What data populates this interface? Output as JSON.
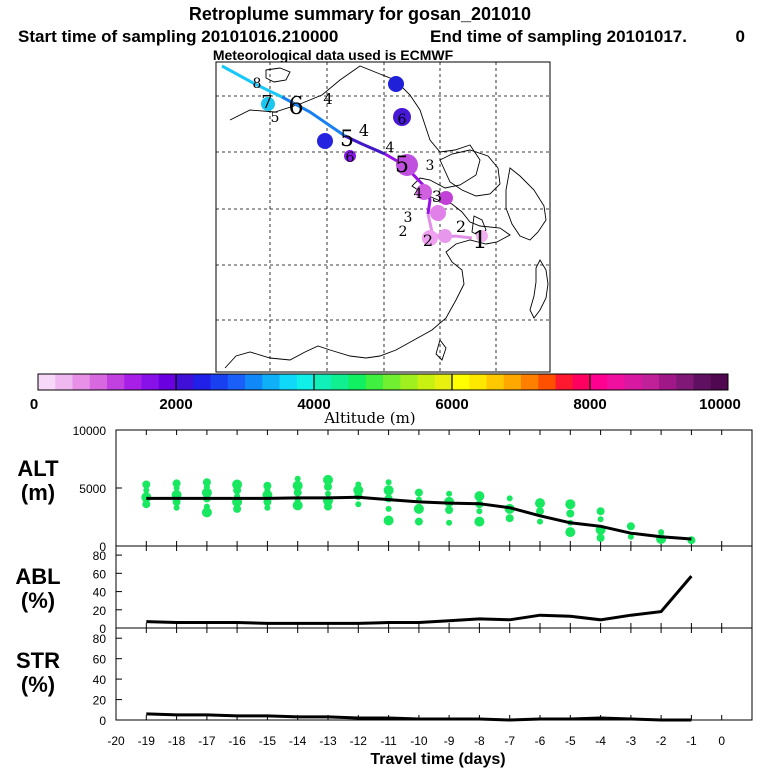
{
  "header": {
    "title": "Retroplume summary for gosan_201010",
    "start_time": "Start time of sampling 20101016.210000",
    "end_time": "End time of sampling 20101017.",
    "end_time_suffix": "0",
    "met_data": "Meteorological data used is ECMWF"
  },
  "colorbar": {
    "label": "Altitude (m)",
    "ticks": [
      "0",
      "2000",
      "4000",
      "6000",
      "8000",
      "10000"
    ],
    "colors": [
      "#f8d8f8",
      "#f0b8f0",
      "#e890e8",
      "#d868e0",
      "#c040e0",
      "#a820e8",
      "#8810e8",
      "#6a00e0",
      "#4010d8",
      "#2020e8",
      "#1840f0",
      "#1a60f8",
      "#1088f8",
      "#10b0f8",
      "#10d8f8",
      "#10f0e8",
      "#10f0b8",
      "#10f090",
      "#10f060",
      "#40f040",
      "#70f030",
      "#a0f020",
      "#c8f010",
      "#e8f010",
      "#ffff00",
      "#ffe800",
      "#ffc800",
      "#ffa800",
      "#ff8000",
      "#ff5000",
      "#ff1830",
      "#ff0060",
      "#ff0090",
      "#f010a0",
      "#d818a0",
      "#c02098",
      "#a01888",
      "#801878",
      "#601060",
      "#500850"
    ]
  },
  "map": {
    "ages": [
      "1",
      "2",
      "3",
      "4",
      "5",
      "6",
      "7",
      "8"
    ],
    "trajectory_colors": [
      "#e090e8",
      "#9810e8",
      "#4018c8",
      "#1880f0",
      "#18c8f8"
    ]
  },
  "chart_data": [
    {
      "type": "scatter",
      "panel": "ALT",
      "ylabel_line1": "ALT",
      "ylabel_line2": "(m)",
      "ylim": [
        0,
        10000
      ],
      "ytick_labels": [
        "10000",
        "5000",
        "0"
      ],
      "marker_color": "#18e860",
      "median_line": {
        "x": [
          -19,
          -18,
          -17,
          -16,
          -15,
          -14,
          -13,
          -12,
          -11,
          -10,
          -9,
          -8,
          -7,
          -6,
          -5,
          -4,
          -3,
          -2,
          -1
        ],
        "y": [
          4100,
          4100,
          4100,
          4100,
          4100,
          4150,
          4150,
          4200,
          4000,
          3800,
          3700,
          3650,
          3300,
          2600,
          2000,
          1700,
          1100,
          800,
          600
        ]
      },
      "points": [
        {
          "x": -19,
          "y": [
            3600,
            4200,
            4800,
            5300
          ]
        },
        {
          "x": -18,
          "y": [
            3300,
            3800,
            4400,
            5000,
            5400
          ]
        },
        {
          "x": -17,
          "y": [
            2900,
            3400,
            4100,
            4600,
            5100,
            5500
          ]
        },
        {
          "x": -16,
          "y": [
            3200,
            3800,
            4300,
            4800,
            5300
          ]
        },
        {
          "x": -15,
          "y": [
            3300,
            3800,
            4400,
            4900,
            5200
          ]
        },
        {
          "x": -14,
          "y": [
            3500,
            4000,
            4600,
            5200,
            5800
          ]
        },
        {
          "x": -13,
          "y": [
            3400,
            3900,
            4500,
            5100,
            5700
          ]
        },
        {
          "x": -12,
          "y": [
            3600,
            4300,
            4800,
            5300
          ]
        },
        {
          "x": -11,
          "y": [
            2200,
            3200,
            4100,
            4800,
            5500
          ]
        },
        {
          "x": -10,
          "y": [
            2100,
            3200,
            4000,
            4600
          ]
        },
        {
          "x": -9,
          "y": [
            2000,
            3100,
            3800,
            4500
          ]
        },
        {
          "x": -8,
          "y": [
            2100,
            3000,
            3600,
            4300
          ]
        },
        {
          "x": -7,
          "y": [
            2400,
            3200,
            4100
          ]
        },
        {
          "x": -6,
          "y": [
            2100,
            3000,
            3700
          ]
        },
        {
          "x": -5,
          "y": [
            1200,
            2000,
            2800,
            3600
          ]
        },
        {
          "x": -4,
          "y": [
            700,
            1400,
            2300,
            3000
          ]
        },
        {
          "x": -3,
          "y": [
            800,
            1700
          ]
        },
        {
          "x": -2,
          "y": [
            600,
            1200
          ]
        },
        {
          "x": -1,
          "y": [
            500
          ]
        }
      ]
    },
    {
      "type": "line",
      "panel": "ABL",
      "ylabel_line1": "ABL",
      "ylabel_line2": "(%)",
      "ylim": [
        0,
        90
      ],
      "ytick_labels": [
        "80",
        "60",
        "40",
        "20",
        "0"
      ],
      "x": [
        -19,
        -18,
        -17,
        -16,
        -15,
        -14,
        -13,
        -12,
        -11,
        -10,
        -9,
        -8,
        -7,
        -6,
        -5,
        -4,
        -3,
        -2,
        -1
      ],
      "y": [
        7,
        6,
        6,
        6,
        5,
        5,
        5,
        5,
        6,
        6,
        8,
        10,
        9,
        14,
        13,
        9,
        14,
        18,
        57
      ]
    },
    {
      "type": "line",
      "panel": "STR",
      "ylabel_line1": "STR",
      "ylabel_line2": "(%)",
      "ylim": [
        0,
        90
      ],
      "ytick_labels": [
        "80",
        "60",
        "40",
        "20",
        "0"
      ],
      "x": [
        -19,
        -18,
        -17,
        -16,
        -15,
        -14,
        -13,
        -12,
        -11,
        -10,
        -9,
        -8,
        -7,
        -6,
        -5,
        -4,
        -3,
        -2,
        -1
      ],
      "y": [
        6,
        5,
        5,
        4,
        4,
        3,
        3,
        2,
        2,
        1,
        1,
        1,
        0,
        1,
        1,
        2,
        1,
        0,
        0
      ]
    }
  ],
  "xaxis": {
    "label": "Travel time (days)",
    "tick_labels": [
      "-20",
      "-19",
      "-18",
      "-17",
      "-16",
      "-15",
      "-14",
      "-13",
      "-12",
      "-11",
      "-10",
      "-9",
      "-8",
      "-7",
      "-6",
      "-5",
      "-4",
      "-3",
      "-2",
      "-1",
      "0"
    ]
  }
}
